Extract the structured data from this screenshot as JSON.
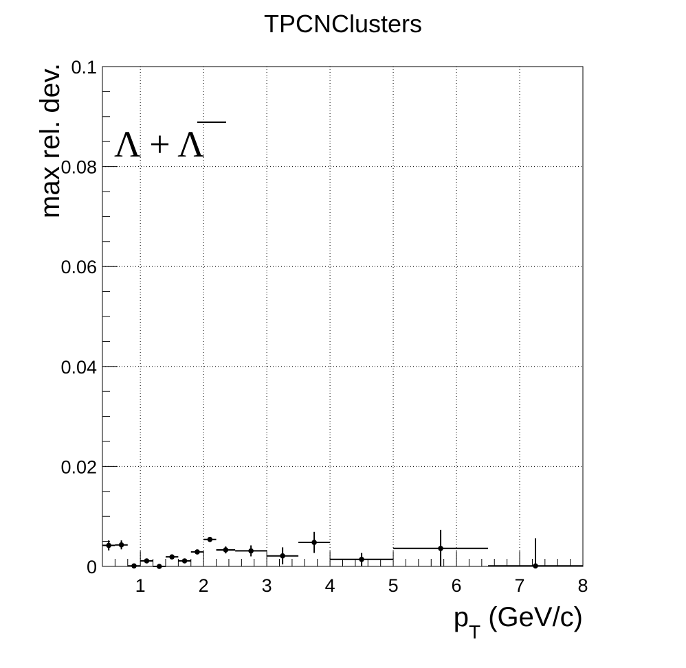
{
  "chart_data": {
    "type": "scatter",
    "title": "TPCNClusters",
    "xlabel_main": "p",
    "xlabel_sub": "T",
    "xlabel_unit": " (GeV/c)",
    "ylabel": "max rel. dev.",
    "annotation": "Λ + Λ",
    "xlim": [
      0.4,
      8
    ],
    "ylim": [
      0,
      0.1
    ],
    "grid": true,
    "x_ticks": [
      1,
      2,
      3,
      4,
      5,
      6,
      7,
      8
    ],
    "x_tick_labels": [
      "1",
      "2",
      "3",
      "4",
      "5",
      "6",
      "7",
      "8"
    ],
    "y_ticks": [
      0,
      0.02,
      0.04,
      0.06,
      0.08,
      0.1
    ],
    "y_tick_labels": [
      "0",
      "0.02",
      "0.04",
      "0.06",
      "0.08",
      "0.1"
    ],
    "points": [
      {
        "x": 0.5,
        "y": 0.0042,
        "xerr": 0.1,
        "yerr": 0.001
      },
      {
        "x": 0.7,
        "y": 0.0043,
        "xerr": 0.1,
        "yerr": 0.0009
      },
      {
        "x": 0.9,
        "y": 0.0001,
        "xerr": 0.1,
        "yerr": 0.0004
      },
      {
        "x": 1.1,
        "y": 0.0011,
        "xerr": 0.1,
        "yerr": 0.0004
      },
      {
        "x": 1.3,
        "y": 0.0,
        "xerr": 0.1,
        "yerr": 0.0003
      },
      {
        "x": 1.5,
        "y": 0.0019,
        "xerr": 0.1,
        "yerr": 0.0004
      },
      {
        "x": 1.7,
        "y": 0.0011,
        "xerr": 0.1,
        "yerr": 0.0004
      },
      {
        "x": 1.9,
        "y": 0.0029,
        "xerr": 0.1,
        "yerr": 0.0004
      },
      {
        "x": 2.1,
        "y": 0.0054,
        "xerr": 0.1,
        "yerr": 0.0005
      },
      {
        "x": 2.35,
        "y": 0.0033,
        "xerr": 0.15,
        "yerr": 0.0007
      },
      {
        "x": 2.75,
        "y": 0.0031,
        "xerr": 0.25,
        "yerr": 0.0011
      },
      {
        "x": 3.25,
        "y": 0.0021,
        "xerr": 0.25,
        "yerr": 0.0017
      },
      {
        "x": 3.75,
        "y": 0.0048,
        "xerr": 0.25,
        "yerr": 0.0021
      },
      {
        "x": 4.5,
        "y": 0.0014,
        "xerr": 0.5,
        "yerr": 0.0013
      },
      {
        "x": 5.75,
        "y": 0.0036,
        "xerr": 0.75,
        "yerr": 0.0037
      },
      {
        "x": 7.25,
        "y": 0.0001,
        "xerr": 0.75,
        "yerr": 0.0055
      }
    ]
  }
}
